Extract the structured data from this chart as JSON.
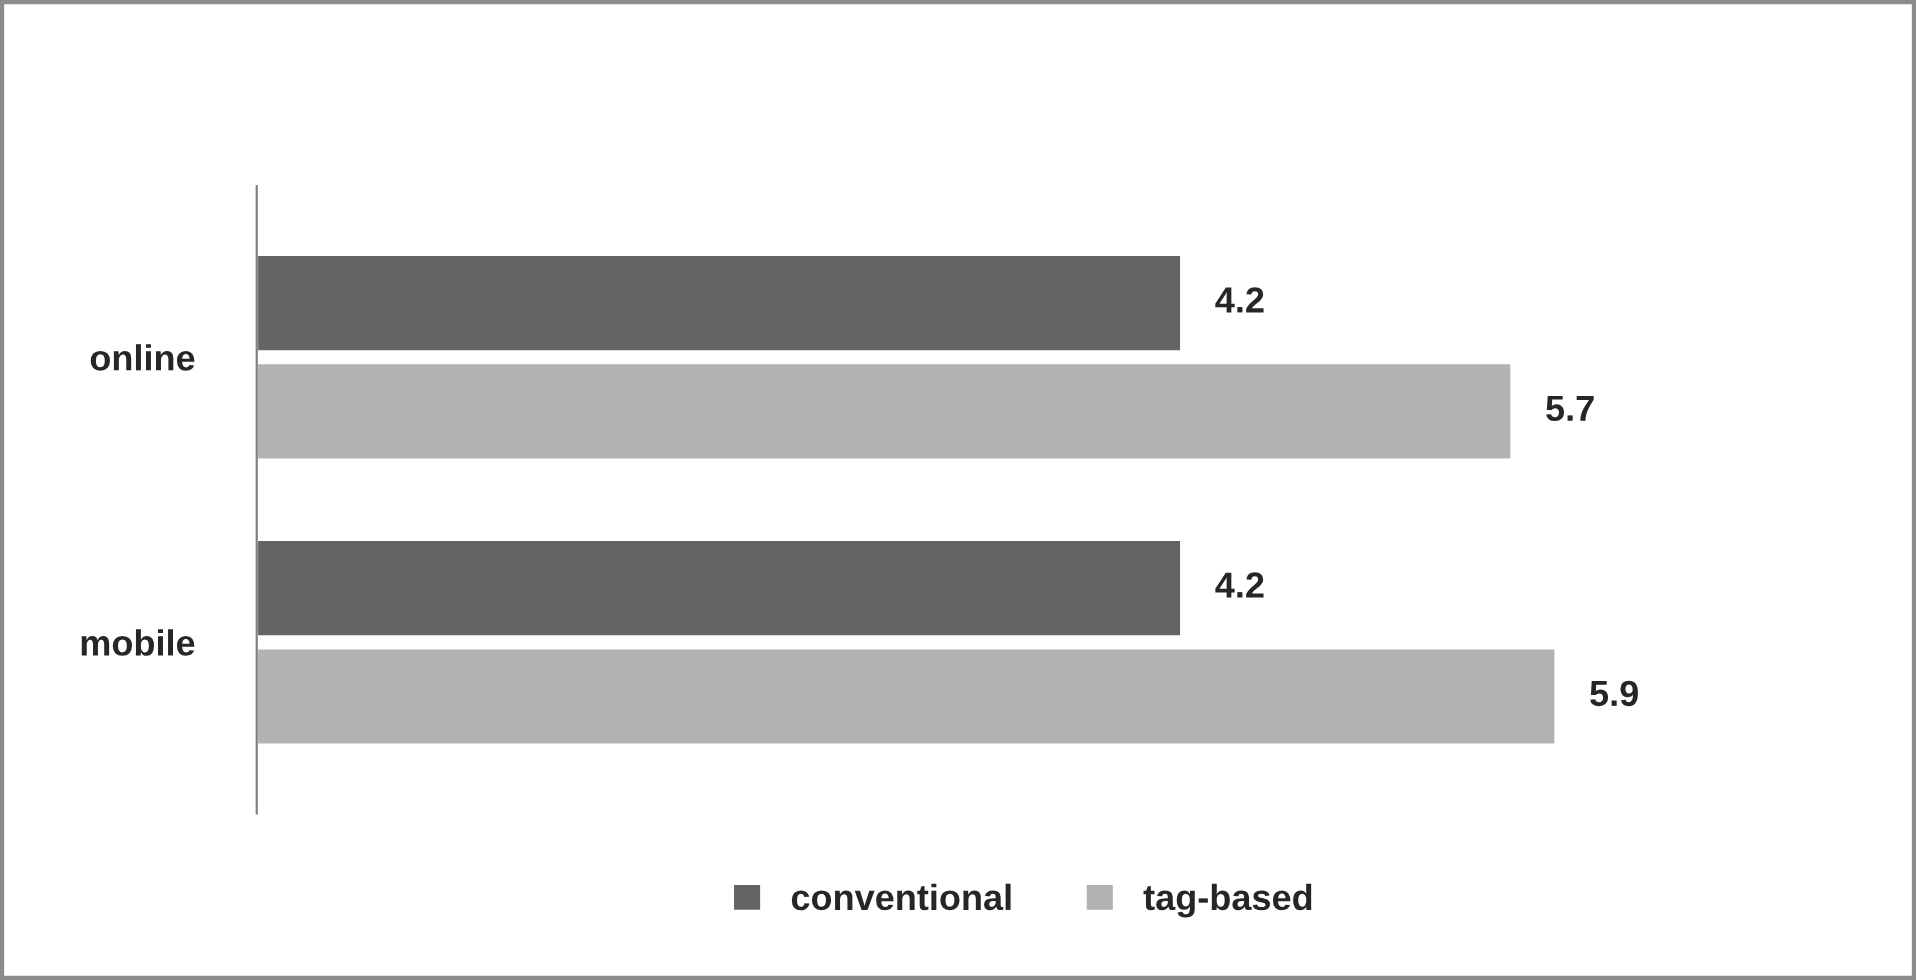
{
  "chart_data": {
    "type": "bar",
    "orientation": "horizontal",
    "categories": [
      "online",
      "mobile"
    ],
    "series": [
      {
        "name": "conventional",
        "color": "#646464",
        "values": [
          4.2,
          4.2
        ]
      },
      {
        "name": "tag-based",
        "color": "#b2b2b2",
        "values": [
          5.7,
          5.9
        ]
      }
    ],
    "data_labels": true,
    "legend": "bottom",
    "grid": false
  }
}
